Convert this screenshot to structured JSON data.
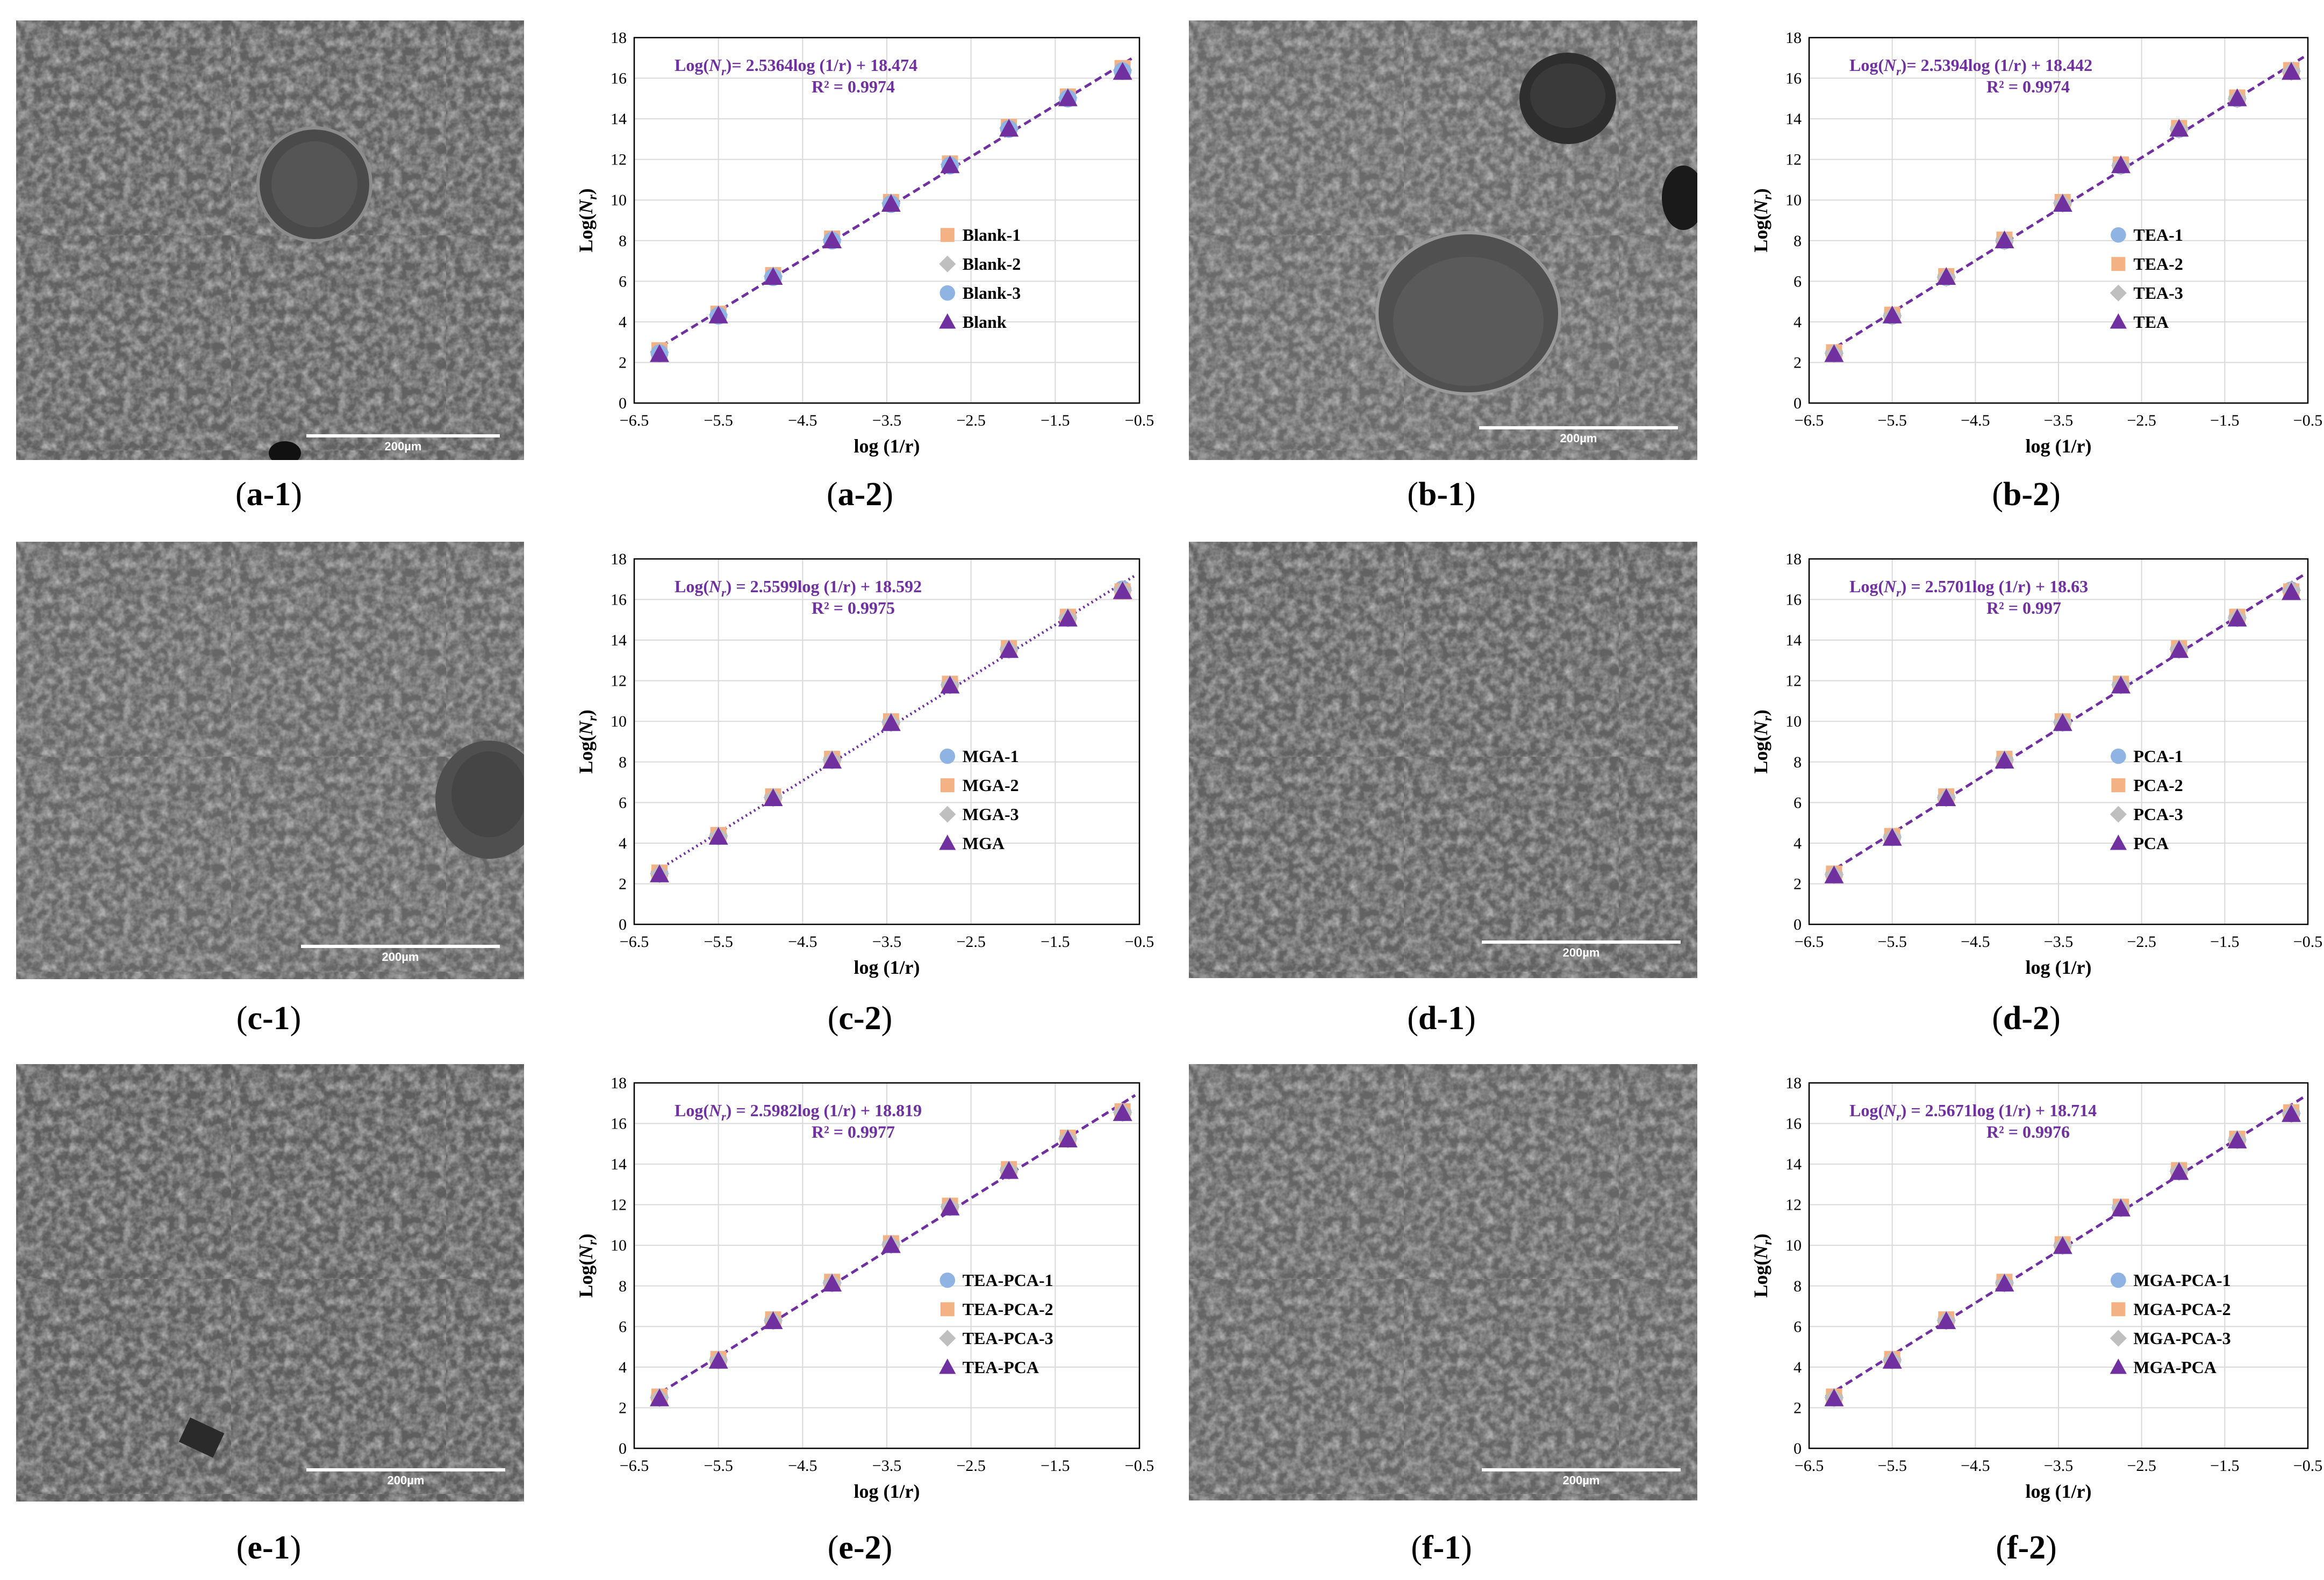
{
  "panels": [
    {
      "sem": {
        "scale_label": "200µm"
      },
      "captions": {
        "sem": [
          "a",
          "-1"
        ],
        "chart": [
          "a",
          "-2"
        ]
      }
    },
    {
      "sem": {
        "scale_label": "200µm"
      },
      "captions": {
        "sem": [
          "b",
          "-1"
        ],
        "chart": [
          "b",
          "-2"
        ]
      }
    },
    {
      "sem": {
        "scale_label": "200µm"
      },
      "captions": {
        "sem": [
          "c",
          "-1"
        ],
        "chart": [
          "c",
          "-2"
        ]
      }
    },
    {
      "sem": {
        "scale_label": "200µm"
      },
      "captions": {
        "sem": [
          "d",
          "-1"
        ],
        "chart": [
          "d",
          "-2"
        ]
      }
    },
    {
      "sem": {
        "scale_label": "200µm"
      },
      "captions": {
        "sem": [
          "e",
          "-1"
        ],
        "chart": [
          "e",
          "-2"
        ]
      }
    },
    {
      "sem": {
        "scale_label": "200µm"
      },
      "captions": {
        "sem": [
          "f",
          "-1"
        ],
        "chart": [
          "f",
          "-2"
        ]
      }
    }
  ],
  "colors": {
    "fit_line": "#7030a0",
    "equation_text": "#7030a0",
    "series_1": "#8fb4e3",
    "series_2": "#f4b183",
    "series_3": "#bfbfbf",
    "series_mean": "#7030a0",
    "grid": "#d9d9d9"
  },
  "chart_data": [
    {
      "type": "scatter",
      "xlabel": "log (1/r)",
      "ylabel": "Log(N_r)",
      "ylabel_parts": [
        "Log(",
        "N",
        "r",
        ")"
      ],
      "xlim": [
        -6.5,
        -0.5
      ],
      "ylim": [
        0,
        18
      ],
      "x_ticks": [
        "−6.5",
        "−5.5",
        "−4.5",
        "−3.5",
        "−2.5",
        "−1.5",
        "−0.5"
      ],
      "y_ticks": [
        "0",
        "2",
        "4",
        "6",
        "8",
        "10",
        "12",
        "14",
        "16",
        "18"
      ],
      "grid": true,
      "legend_position": "right",
      "fit_line_style": "dashed",
      "equation_parts": [
        "Log(",
        "N",
        "r",
        ")= 2.5364log (1/r) + 18.474"
      ],
      "r_squared": "R² = 0.9974",
      "fit": {
        "slope": 2.5364,
        "intercept": 18.474
      },
      "x": [
        -6.2,
        -5.5,
        -4.85,
        -4.15,
        -3.45,
        -2.75,
        -2.05,
        -1.35,
        -0.7
      ],
      "series": [
        {
          "name": "Blank-1",
          "marker": "square",
          "values": [
            2.6,
            4.4,
            6.3,
            8.1,
            9.9,
            11.8,
            13.6,
            15.1,
            16.5
          ]
        },
        {
          "name": "Blank-2",
          "marker": "diamond",
          "values": [
            2.5,
            4.35,
            6.25,
            8.05,
            9.85,
            11.75,
            13.55,
            15.05,
            16.4
          ]
        },
        {
          "name": "Blank-3",
          "marker": "circle",
          "values": [
            2.45,
            4.3,
            6.2,
            8.0,
            9.8,
            11.7,
            13.5,
            15.0,
            16.35
          ]
        },
        {
          "name": "Blank",
          "marker": "triangle",
          "values": [
            2.4,
            4.3,
            6.2,
            8.0,
            9.8,
            11.7,
            13.5,
            15.0,
            16.3
          ]
        }
      ]
    },
    {
      "type": "scatter",
      "xlabel": "log (1/r)",
      "ylabel": "Log(N_r)",
      "ylabel_parts": [
        "Log(",
        "N",
        "r",
        ")"
      ],
      "xlim": [
        -6.5,
        -0.5
      ],
      "ylim": [
        0,
        18
      ],
      "x_ticks": [
        "−6.5",
        "−5.5",
        "−4.5",
        "−3.5",
        "−2.5",
        "−1.5",
        "−0.5"
      ],
      "y_ticks": [
        "0",
        "2",
        "4",
        "6",
        "8",
        "10",
        "12",
        "14",
        "16",
        "18"
      ],
      "grid": true,
      "legend_position": "right",
      "fit_line_style": "dashed",
      "equation_parts": [
        "Log(",
        "N",
        "r",
        ")= 2.5394log (1/r) + 18.442"
      ],
      "r_squared": "R² = 0.9974",
      "fit": {
        "slope": 2.5394,
        "intercept": 18.442
      },
      "x": [
        -6.2,
        -5.5,
        -4.85,
        -4.15,
        -3.45,
        -2.75,
        -2.05,
        -1.35,
        -0.7
      ],
      "series": [
        {
          "name": "TEA-1",
          "marker": "circle",
          "values": [
            2.45,
            4.3,
            6.2,
            8.0,
            9.85,
            11.7,
            13.5,
            15.0,
            16.35
          ]
        },
        {
          "name": "TEA-2",
          "marker": "square",
          "values": [
            2.5,
            4.35,
            6.25,
            8.05,
            9.9,
            11.75,
            13.55,
            15.05,
            16.4
          ]
        },
        {
          "name": "TEA-3",
          "marker": "diamond",
          "values": [
            2.45,
            4.3,
            6.2,
            8.0,
            9.85,
            11.7,
            13.5,
            15.0,
            16.35
          ]
        },
        {
          "name": "TEA",
          "marker": "triangle",
          "values": [
            2.4,
            4.3,
            6.2,
            8.0,
            9.8,
            11.7,
            13.5,
            15.0,
            16.3
          ]
        }
      ]
    },
    {
      "type": "scatter",
      "xlabel": "log (1/r)",
      "ylabel": "Log(N_r)",
      "ylabel_parts": [
        "Log(",
        "N",
        "r",
        ")"
      ],
      "xlim": [
        -6.5,
        -0.5
      ],
      "ylim": [
        0,
        18
      ],
      "x_ticks": [
        "−6.5",
        "−5.5",
        "−4.5",
        "−3.5",
        "−2.5",
        "−1.5",
        "−0.5"
      ],
      "y_ticks": [
        "0",
        "2",
        "4",
        "6",
        "8",
        "10",
        "12",
        "14",
        "16",
        "18"
      ],
      "grid": true,
      "legend_position": "right",
      "fit_line_style": "dotted",
      "equation_parts": [
        "Log(",
        "N",
        "r",
        ") = 2.5599log (1/r) + 18.592"
      ],
      "r_squared": "R² = 0.9975",
      "fit": {
        "slope": 2.5599,
        "intercept": 18.592
      },
      "x": [
        -6.2,
        -5.5,
        -4.85,
        -4.15,
        -3.45,
        -2.75,
        -2.05,
        -1.35,
        -0.7
      ],
      "series": [
        {
          "name": "MGA-1",
          "marker": "circle",
          "values": [
            2.5,
            4.35,
            6.25,
            8.1,
            9.95,
            11.8,
            13.55,
            15.1,
            16.5
          ]
        },
        {
          "name": "MGA-2",
          "marker": "square",
          "values": [
            2.55,
            4.4,
            6.3,
            8.15,
            10.0,
            11.85,
            13.6,
            15.15,
            16.4
          ]
        },
        {
          "name": "MGA-3",
          "marker": "diamond",
          "values": [
            2.5,
            4.35,
            6.25,
            8.1,
            9.95,
            11.8,
            13.55,
            15.1,
            16.45
          ]
        },
        {
          "name": "MGA",
          "marker": "triangle",
          "values": [
            2.45,
            4.3,
            6.2,
            8.05,
            9.9,
            11.75,
            13.5,
            15.05,
            16.4
          ]
        }
      ]
    },
    {
      "type": "scatter",
      "xlabel": "log (1/r)",
      "ylabel": "Log(N_r)",
      "ylabel_parts": [
        "Log(",
        "N",
        "r",
        ")"
      ],
      "xlim": [
        -6.5,
        -0.5
      ],
      "ylim": [
        0,
        18
      ],
      "x_ticks": [
        "−6.5",
        "−5.5",
        "−4.5",
        "−3.5",
        "−2.5",
        "−1.5",
        "−0.5"
      ],
      "y_ticks": [
        "0",
        "2",
        "4",
        "6",
        "8",
        "10",
        "12",
        "14",
        "16",
        "18"
      ],
      "grid": true,
      "legend_position": "right",
      "fit_line_style": "dashed",
      "equation_parts": [
        "Log(",
        "N",
        "r",
        ") = 2.5701log (1/r) + 18.63"
      ],
      "r_squared": "R² = 0.997",
      "fit": {
        "slope": 2.5701,
        "intercept": 18.63
      },
      "x": [
        -6.2,
        -5.5,
        -4.85,
        -4.15,
        -3.45,
        -2.75,
        -2.05,
        -1.35,
        -0.7
      ],
      "series": [
        {
          "name": "PCA-1",
          "marker": "circle",
          "values": [
            2.45,
            4.3,
            6.25,
            8.1,
            9.95,
            11.8,
            13.55,
            15.1,
            16.45
          ]
        },
        {
          "name": "PCA-2",
          "marker": "square",
          "values": [
            2.5,
            4.35,
            6.3,
            8.15,
            10.0,
            11.85,
            13.6,
            15.15,
            16.4
          ]
        },
        {
          "name": "PCA-3",
          "marker": "diamond",
          "values": [
            2.45,
            4.3,
            6.25,
            8.1,
            9.95,
            11.8,
            13.55,
            15.1,
            16.45
          ]
        },
        {
          "name": "PCA",
          "marker": "triangle",
          "values": [
            2.4,
            4.25,
            6.2,
            8.05,
            9.9,
            11.75,
            13.5,
            15.05,
            16.35
          ]
        }
      ]
    },
    {
      "type": "scatter",
      "xlabel": "log (1/r)",
      "ylabel": "Log(N_r)",
      "ylabel_parts": [
        "Log(",
        "N",
        "r",
        ")"
      ],
      "xlim": [
        -6.5,
        -0.5
      ],
      "ylim": [
        0,
        18
      ],
      "x_ticks": [
        "−6.5",
        "−5.5",
        "−4.5",
        "−3.5",
        "−2.5",
        "−1.5",
        "−0.5"
      ],
      "y_ticks": [
        "0",
        "2",
        "4",
        "6",
        "8",
        "10",
        "12",
        "14",
        "16",
        "18"
      ],
      "grid": true,
      "legend_position": "right",
      "fit_line_style": "dashed",
      "equation_parts": [
        "Log(",
        "N",
        "r",
        ") = 2.5982log (1/r) + 18.819"
      ],
      "r_squared": "R² = 0.9977",
      "fit": {
        "slope": 2.5982,
        "intercept": 18.819
      },
      "x": [
        -6.2,
        -5.5,
        -4.85,
        -4.15,
        -3.45,
        -2.75,
        -2.05,
        -1.35,
        -0.7
      ],
      "series": [
        {
          "name": "TEA-PCA-1",
          "marker": "circle",
          "values": [
            2.5,
            4.35,
            6.3,
            8.15,
            10.05,
            11.9,
            13.7,
            15.25,
            16.55
          ]
        },
        {
          "name": "TEA-PCA-2",
          "marker": "square",
          "values": [
            2.55,
            4.4,
            6.35,
            8.2,
            10.1,
            11.95,
            13.75,
            15.3,
            16.6
          ]
        },
        {
          "name": "TEA-PCA-3",
          "marker": "diamond",
          "values": [
            2.5,
            4.35,
            6.3,
            8.15,
            10.05,
            11.9,
            13.7,
            15.25,
            16.55
          ]
        },
        {
          "name": "TEA-PCA",
          "marker": "triangle",
          "values": [
            2.45,
            4.3,
            6.25,
            8.1,
            10.0,
            11.85,
            13.65,
            15.2,
            16.5
          ]
        }
      ]
    },
    {
      "type": "scatter",
      "xlabel": "log (1/r)",
      "ylabel": "Log(N_r)",
      "ylabel_parts": [
        "Log(",
        "N",
        "r",
        ")"
      ],
      "xlim": [
        -6.5,
        -0.5
      ],
      "ylim": [
        0,
        18
      ],
      "x_ticks": [
        "−6.5",
        "−5.5",
        "−4.5",
        "−3.5",
        "−2.5",
        "−1.5",
        "−0.5"
      ],
      "y_ticks": [
        "0",
        "2",
        "4",
        "6",
        "8",
        "10",
        "12",
        "14",
        "16",
        "18"
      ],
      "grid": true,
      "legend_position": "right",
      "fit_line_style": "dashed",
      "equation_parts": [
        "Log(",
        "N",
        "r",
        ") = 2.5671log (1/r) + 18.714"
      ],
      "r_squared": "R² = 0.9976",
      "fit": {
        "slope": 2.5671,
        "intercept": 18.714
      },
      "x": [
        -6.2,
        -5.5,
        -4.85,
        -4.15,
        -3.45,
        -2.75,
        -2.05,
        -1.35,
        -0.7
      ],
      "series": [
        {
          "name": "MGA-PCA-1",
          "marker": "circle",
          "values": [
            2.5,
            4.35,
            6.3,
            8.15,
            10.0,
            11.85,
            13.65,
            15.2,
            16.5
          ]
        },
        {
          "name": "MGA-PCA-2",
          "marker": "square",
          "values": [
            2.55,
            4.4,
            6.35,
            8.2,
            10.05,
            11.9,
            13.7,
            15.25,
            16.55
          ]
        },
        {
          "name": "MGA-PCA-3",
          "marker": "diamond",
          "values": [
            2.5,
            4.35,
            6.3,
            8.15,
            10.0,
            11.85,
            13.65,
            15.2,
            16.5
          ]
        },
        {
          "name": "MGA-PCA",
          "marker": "triangle",
          "values": [
            2.45,
            4.3,
            6.25,
            8.1,
            9.95,
            11.8,
            13.6,
            15.15,
            16.45
          ]
        }
      ]
    }
  ]
}
